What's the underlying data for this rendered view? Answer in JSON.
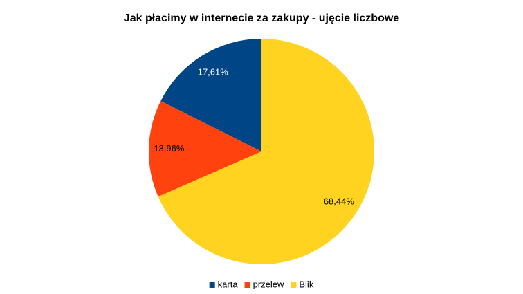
{
  "chart_data": {
    "type": "pie",
    "title": "Jak płacimy w internecie za zakupy - ujęcie liczbowe",
    "categories": [
      "karta",
      "przelew",
      "Blik"
    ],
    "values": [
      17.61,
      13.96,
      68.44
    ],
    "value_labels": [
      "17,61%",
      "13,96%",
      "68,44%"
    ],
    "colors": [
      "#004586",
      "#ff420e",
      "#ffd320"
    ],
    "label_colors": [
      "#ffffff",
      "#000000",
      "#000000"
    ],
    "legend": "bottom"
  }
}
